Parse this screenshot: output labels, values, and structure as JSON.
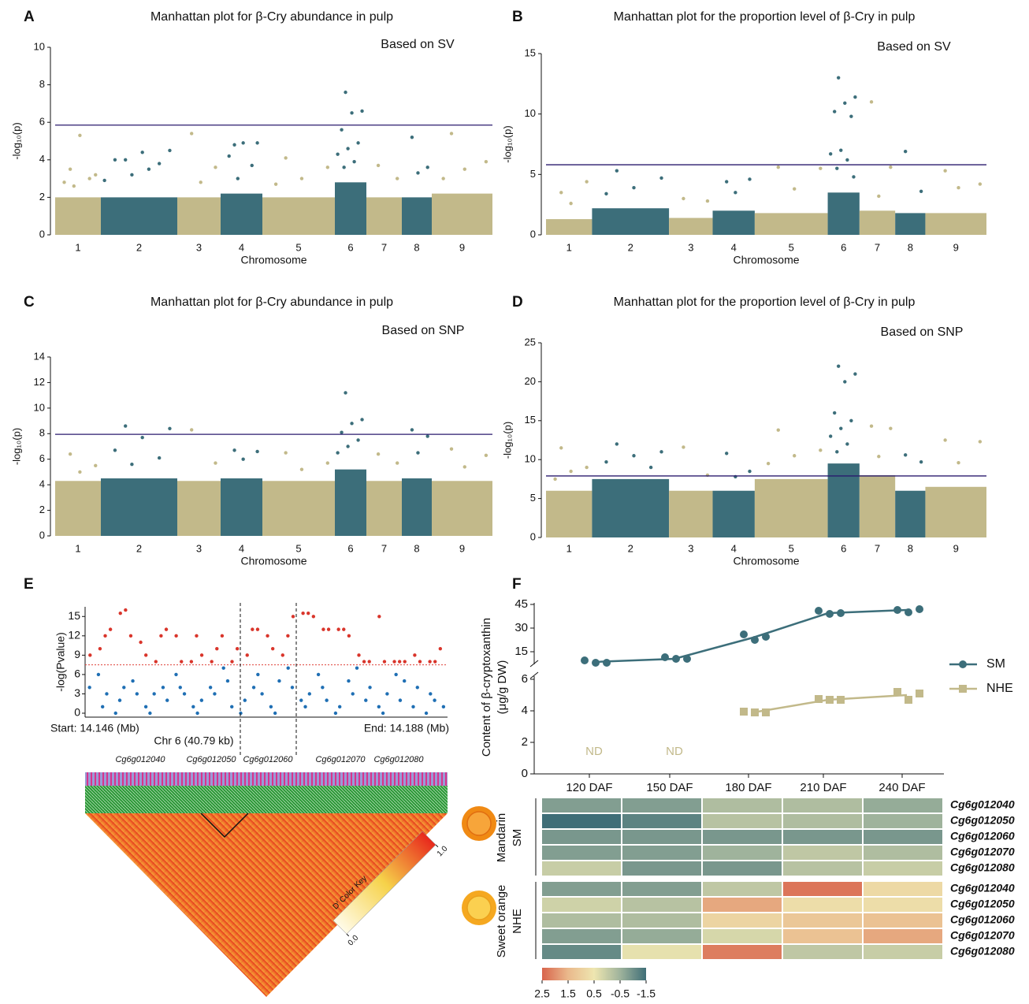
{
  "chart_data": [
    {
      "type": "manhattan",
      "label": "A",
      "title": "Manhattan plot for β-Cry abundance in pulp",
      "annotation": "Based on SV",
      "xlabel": "Chromosome",
      "ylabel": "-log₁₀(p)",
      "ylim": [
        0,
        10
      ],
      "yticks": [
        0,
        2,
        4,
        6,
        8,
        10
      ],
      "threshold": 5.85,
      "threshold_color": "#2a1a6e",
      "chromosomes": [
        {
          "label": "1",
          "color": "#c2b98a",
          "band": 2,
          "points": [
            3.5,
            3.2,
            5.3,
            2.8,
            3.0,
            2.6
          ]
        },
        {
          "label": "2",
          "color": "#3c6e7a",
          "band": 2,
          "points": [
            4.0,
            4.5,
            4.4,
            4.0,
            3.8,
            3.2,
            2.9,
            3.5
          ]
        },
        {
          "label": "3",
          "color": "#c2b98a",
          "band": 2,
          "points": [
            5.4,
            3.6,
            2.8
          ]
        },
        {
          "label": "4",
          "color": "#3c6e7a",
          "band": 2.2,
          "points": [
            4.8,
            4.9,
            4.9,
            4.2,
            3.7,
            3.0
          ]
        },
        {
          "label": "5",
          "color": "#c2b98a",
          "band": 2,
          "points": [
            4.1,
            3.6,
            3.0,
            2.7
          ]
        },
        {
          "label": "6",
          "color": "#3c6e7a",
          "band": 2.8,
          "points": [
            7.6,
            6.6,
            6.5,
            5.6,
            4.9,
            4.6,
            4.3,
            3.9,
            3.6
          ]
        },
        {
          "label": "7",
          "color": "#c2b98a",
          "band": 2,
          "points": [
            3.7,
            3.0
          ]
        },
        {
          "label": "8",
          "color": "#3c6e7a",
          "band": 2,
          "points": [
            5.2,
            3.6,
            3.3
          ]
        },
        {
          "label": "9",
          "color": "#c2b98a",
          "band": 2.2,
          "points": [
            5.4,
            3.9,
            3.5,
            3.0
          ]
        }
      ]
    },
    {
      "type": "manhattan",
      "label": "B",
      "title": "Manhattan plot for the proportion level of β-Cry in pulp",
      "annotation": "Based on SV",
      "xlabel": "Chromosome",
      "ylabel": "-log₁₀(p)",
      "ylim": [
        0,
        15
      ],
      "yticks": [
        0,
        5,
        10,
        15
      ],
      "threshold": 5.8,
      "threshold_color": "#2a1a6e",
      "chromosomes": [
        {
          "label": "1",
          "color": "#c2b98a",
          "band": 1.3,
          "points": [
            3.5,
            4.4,
            2.6
          ]
        },
        {
          "label": "2",
          "color": "#3c6e7a",
          "band": 2.2,
          "points": [
            5.3,
            4.7,
            3.9,
            3.4
          ]
        },
        {
          "label": "3",
          "color": "#c2b98a",
          "band": 1.4,
          "points": [
            3.0,
            2.8
          ]
        },
        {
          "label": "4",
          "color": "#3c6e7a",
          "band": 2,
          "points": [
            4.4,
            4.6,
            3.5
          ]
        },
        {
          "label": "5",
          "color": "#c2b98a",
          "band": 1.8,
          "points": [
            5.6,
            5.5,
            3.8
          ]
        },
        {
          "label": "6",
          "color": "#3c6e7a",
          "band": 3.5,
          "points": [
            13.0,
            11.4,
            10.9,
            10.2,
            9.8,
            7.0,
            6.7,
            6.2,
            5.5,
            4.8
          ]
        },
        {
          "label": "7",
          "color": "#c2b98a",
          "band": 2,
          "points": [
            11.0,
            5.6,
            3.2
          ]
        },
        {
          "label": "8",
          "color": "#3c6e7a",
          "band": 1.8,
          "points": [
            6.9,
            3.6
          ]
        },
        {
          "label": "9",
          "color": "#c2b98a",
          "band": 1.8,
          "points": [
            5.3,
            4.2,
            3.9
          ]
        }
      ]
    },
    {
      "type": "manhattan",
      "label": "C",
      "title": "Manhattan plot for β-Cry abundance in pulp",
      "annotation": "Based on SNP",
      "xlabel": "Chromosome",
      "ylabel": "-log₁₀(p)",
      "ylim": [
        0,
        14
      ],
      "yticks": [
        0,
        2,
        4,
        6,
        8,
        10,
        12,
        14
      ],
      "threshold": 7.95,
      "threshold_color": "#2a1a6e",
      "chromosomes": [
        {
          "label": "1",
          "color": "#c2b98a",
          "band": 4.3,
          "points": [
            6.4,
            5.5,
            5.0
          ]
        },
        {
          "label": "2",
          "color": "#3c6e7a",
          "band": 4.5,
          "points": [
            8.6,
            8.4,
            7.7,
            6.7,
            6.1,
            5.6
          ]
        },
        {
          "label": "3",
          "color": "#c2b98a",
          "band": 4.3,
          "points": [
            8.3,
            5.7
          ]
        },
        {
          "label": "4",
          "color": "#3c6e7a",
          "band": 4.5,
          "points": [
            6.7,
            6.6,
            6.0
          ]
        },
        {
          "label": "5",
          "color": "#c2b98a",
          "band": 4.3,
          "points": [
            6.5,
            5.7,
            5.2
          ]
        },
        {
          "label": "6",
          "color": "#3c6e7a",
          "band": 5.2,
          "points": [
            11.2,
            9.1,
            8.8,
            8.1,
            7.5,
            7.0,
            6.5
          ]
        },
        {
          "label": "7",
          "color": "#c2b98a",
          "band": 4.3,
          "points": [
            6.4,
            5.7
          ]
        },
        {
          "label": "8",
          "color": "#3c6e7a",
          "band": 4.5,
          "points": [
            8.3,
            7.8,
            6.5
          ]
        },
        {
          "label": "9",
          "color": "#c2b98a",
          "band": 4.3,
          "points": [
            6.8,
            6.3,
            5.4
          ]
        }
      ]
    },
    {
      "type": "manhattan",
      "label": "D",
      "title": "Manhattan plot for the proportion level of β-Cry in pulp",
      "annotation": "Based on SNP",
      "xlabel": "Chromosome",
      "ylabel": "-log₁₀(p)",
      "ylim": [
        0,
        25
      ],
      "yticks": [
        0,
        5,
        10,
        15,
        20,
        25
      ],
      "threshold": 7.9,
      "threshold_color": "#2a1a6e",
      "chromosomes": [
        {
          "label": "1",
          "color": "#c2b98a",
          "band": 6,
          "points": [
            11.5,
            9.0,
            8.5,
            7.5
          ]
        },
        {
          "label": "2",
          "color": "#3c6e7a",
          "band": 7.5,
          "points": [
            12.0,
            11.0,
            10.5,
            9.7,
            9.0
          ]
        },
        {
          "label": "3",
          "color": "#c2b98a",
          "band": 6,
          "points": [
            11.6,
            8.0
          ]
        },
        {
          "label": "4",
          "color": "#3c6e7a",
          "band": 6,
          "points": [
            10.8,
            8.5,
            7.8
          ]
        },
        {
          "label": "5",
          "color": "#c2b98a",
          "band": 7.5,
          "points": [
            13.8,
            11.2,
            10.5,
            9.5
          ]
        },
        {
          "label": "6",
          "color": "#3c6e7a",
          "band": 9.5,
          "points": [
            22.0,
            21.0,
            20.0,
            16.0,
            15.0,
            14.0,
            13.0,
            12.0,
            11.0
          ]
        },
        {
          "label": "7",
          "color": "#c2b98a",
          "band": 8,
          "points": [
            14.3,
            14.0,
            10.4
          ]
        },
        {
          "label": "8",
          "color": "#3c6e7a",
          "band": 6,
          "points": [
            10.6,
            9.7
          ]
        },
        {
          "label": "9",
          "color": "#c2b98a",
          "band": 6.5,
          "points": [
            12.5,
            12.3,
            9.6
          ]
        }
      ]
    },
    {
      "type": "region",
      "label": "E",
      "ylabel": "-log(Pvalue)",
      "ylim": [
        0,
        16.5
      ],
      "yticks": [
        0,
        3,
        6,
        9,
        12,
        15
      ],
      "threshold": 7.5,
      "start": "Start: 14.146 (Mb)",
      "end": "End: 14.188 (Mb)",
      "region": "Chr 6 (40.79 kb)",
      "genes": [
        "Cg6g012040",
        "Cg6g012050",
        "Cg6g012060",
        "Cg6g012070",
        "Cg6g012080"
      ],
      "series": [
        {
          "color": "#d9352b",
          "values": [
            9,
            10,
            12,
            13,
            15.5,
            16,
            12,
            11,
            9,
            8,
            12,
            13,
            12,
            8,
            8,
            12,
            9,
            8,
            10,
            12,
            8,
            10,
            9,
            13,
            13,
            12,
            10,
            9,
            12,
            15,
            15.5,
            15.5,
            15,
            13,
            13,
            13,
            13,
            12,
            9,
            8,
            8,
            15,
            8,
            8,
            8,
            8,
            9,
            8,
            8,
            8,
            10
          ]
        },
        {
          "color": "#1f6fb4",
          "values": [
            4,
            6,
            1,
            3,
            0,
            2,
            4,
            5,
            3,
            1,
            0,
            3,
            4,
            2,
            6,
            4,
            3,
            1,
            0,
            2,
            4,
            3,
            7,
            5,
            1,
            0,
            2,
            4,
            6,
            3,
            1,
            0,
            5,
            7,
            4,
            2,
            1,
            3,
            6,
            4,
            2,
            0,
            1,
            5,
            3,
            7,
            2,
            4,
            1,
            0,
            3,
            6,
            2,
            5,
            1,
            4,
            0,
            3,
            2,
            1
          ]
        }
      ]
    },
    {
      "type": "ld",
      "key_title": "D' Color Key",
      "key_ticks": [
        {
          "value": 0,
          "label": "0.0"
        },
        {
          "value": 1,
          "label": "1.0"
        }
      ],
      "colors": [
        "#fffbe8",
        "#f6d24a",
        "#e8281c"
      ]
    },
    {
      "type": "line",
      "label": "F",
      "ylabel": [
        "Content of β-cryptoxanthin",
        "(μg/g DW)"
      ],
      "categories": [
        "120 DAF",
        "150 DAF",
        "180 DAF",
        "210 DAF",
        "240 DAF"
      ],
      "ylim_upper": [
        4,
        46
      ],
      "yticks_upper": [
        15,
        30,
        45
      ],
      "ylim_lower": [
        0,
        6.5
      ],
      "yticks_lower": [
        0,
        2,
        4,
        6
      ],
      "not_detected": [
        "ND",
        "ND"
      ],
      "series": [
        {
          "name": "SM",
          "color": "#3c6e7a",
          "marker": "circle",
          "axis": "upper",
          "values": [
            8.5,
            10.5,
            24,
            39.5,
            41.5
          ],
          "replicates": [
            [
              9.5,
              8,
              8
            ],
            [
              11.5,
              10.5,
              10.5
            ],
            [
              26,
              22.5,
              24.5
            ],
            [
              41,
              39,
              39.5
            ],
            [
              41.5,
              40,
              42
            ]
          ]
        },
        {
          "name": "NHE",
          "color": "#c2b98a",
          "marker": "square",
          "axis": "lower",
          "values": [
            null,
            null,
            3.9,
            4.7,
            5.0
          ],
          "replicates": [
            [],
            [],
            [
              3.95,
              3.9,
              3.9
            ],
            [
              4.75,
              4.7,
              4.7
            ],
            [
              5.2,
              4.7,
              5.1
            ]
          ]
        }
      ]
    },
    {
      "type": "heatmap",
      "groups": [
        {
          "labels": [
            "Mandarin",
            "SM"
          ],
          "genes": [
            "Cg6g012040",
            "Cg6g012050",
            "Cg6g012060",
            "Cg6g012070",
            "Cg6g012080"
          ],
          "values": [
            [
              -0.8,
              -0.8,
              -0.3,
              -0.3,
              -0.6
            ],
            [
              -1.5,
              -1.2,
              -0.2,
              -0.3,
              -0.5
            ],
            [
              -0.9,
              -0.9,
              -0.9,
              -0.9,
              -0.9
            ],
            [
              -0.8,
              -0.8,
              -0.5,
              -0.1,
              -0.3
            ],
            [
              0.0,
              -0.9,
              -0.9,
              -0.2,
              0.0
            ]
          ]
        },
        {
          "labels": [
            "Sweet orange",
            "NHE"
          ],
          "genes": [
            "Cg6g012040",
            "Cg6g012050",
            "Cg6g012060",
            "Cg6g012070",
            "Cg6g012080"
          ],
          "values": [
            [
              -0.8,
              -0.8,
              -0.1,
              2.3,
              0.8
            ],
            [
              0.1,
              -0.2,
              1.7,
              0.7,
              0.7
            ],
            [
              -0.3,
              -0.3,
              0.9,
              1.2,
              1.3
            ],
            [
              -0.8,
              -0.6,
              0.2,
              1.3,
              1.7
            ],
            [
              -1.1,
              0.4,
              2.2,
              -0.1,
              0.0
            ]
          ]
        }
      ],
      "scale_ticks": [
        2.5,
        1.5,
        0.5,
        -0.5,
        -1.5
      ],
      "scale_colors": [
        "#d8644c",
        "#eab98c",
        "#eee6b0",
        "#9fb39c",
        "#3f6e77"
      ]
    }
  ]
}
